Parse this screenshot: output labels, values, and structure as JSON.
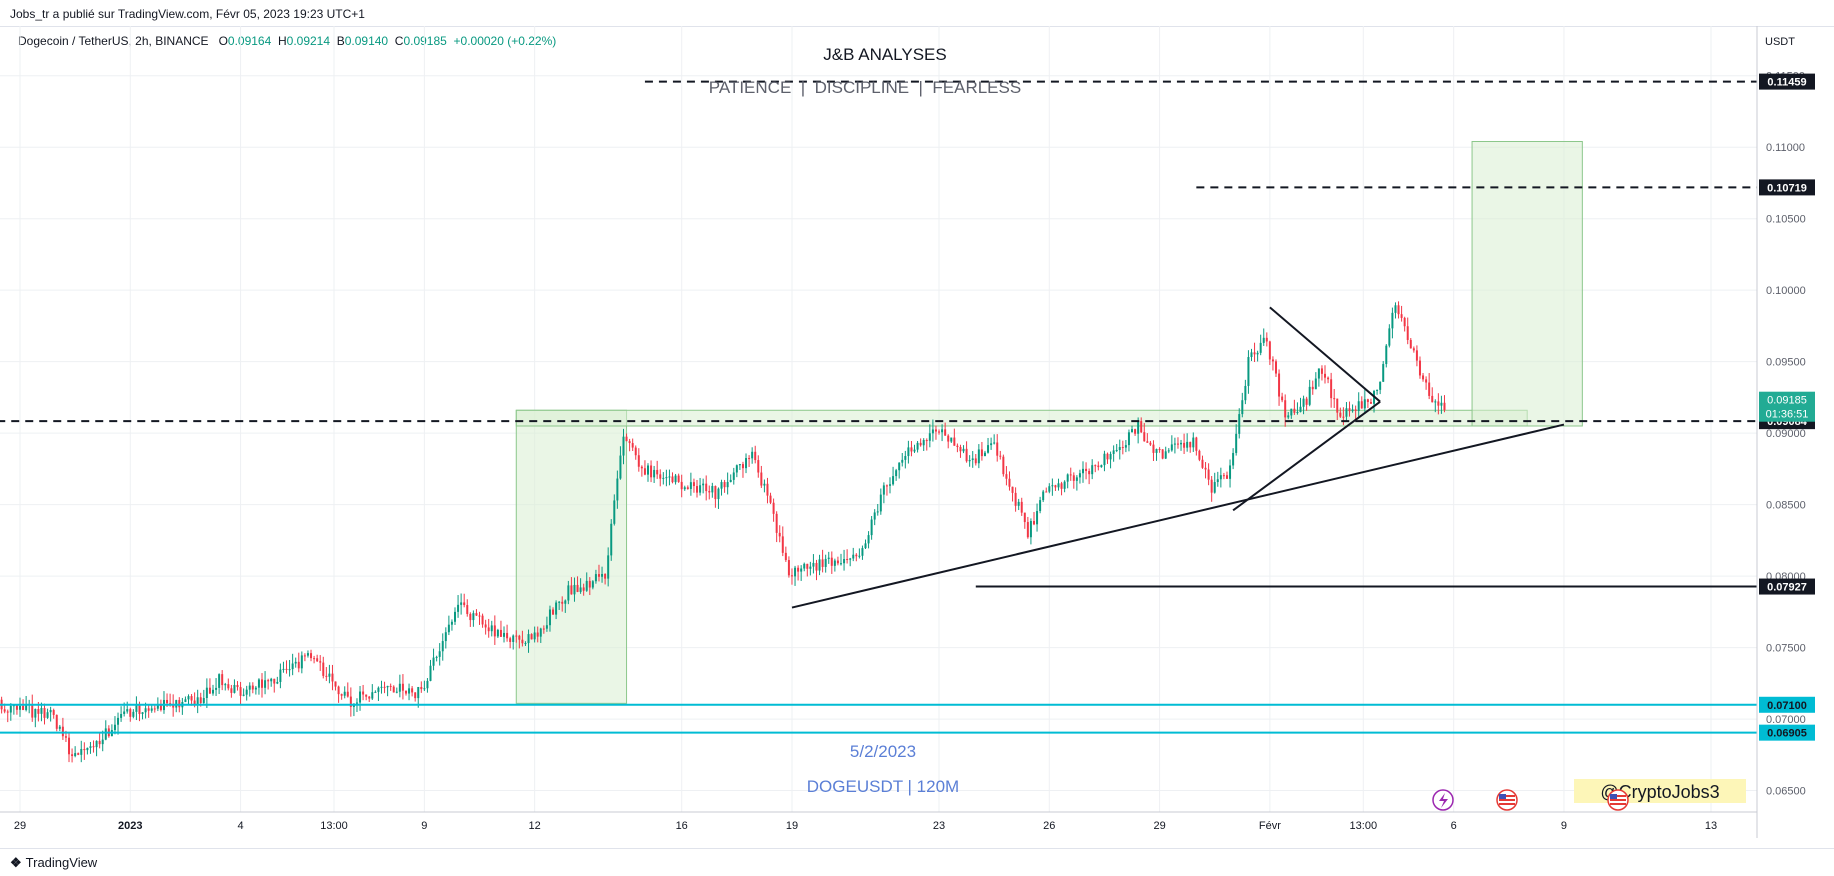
{
  "header": {
    "published_by": "Jobs_tr a publié sur TradingView.com, Févr 05, 2023 19:23 UTC+1"
  },
  "symbol": {
    "name": "Dogecoin / TetherUS, 2h, BINANCE",
    "open_label": "O",
    "open": "0.09164",
    "high_label": "H",
    "high": "0.09214",
    "low_label": "B",
    "low": "0.09140",
    "close_label": "C",
    "close": "0.09185",
    "change": "+0.00020 (+0.22%)"
  },
  "footer": {
    "brand": "TradingView"
  },
  "chart_data": {
    "type": "candlestick",
    "currency_label": "USDT",
    "ylim": [
      0.0635,
      0.1175
    ],
    "y_ticks": [
      "0.06500",
      "0.07000",
      "0.07500",
      "0.08000",
      "0.08500",
      "0.09000",
      "0.09500",
      "0.10000",
      "0.10500",
      "0.11000",
      "0.11500"
    ],
    "x_ticks": [
      "29",
      "2023",
      "4",
      "13:00",
      "9",
      "12",
      "16",
      "19",
      "23",
      "26",
      "29",
      "Févr",
      "13:00",
      "6",
      "9",
      "13"
    ],
    "x_tick_dates": [
      "2022-12-29",
      "2023-01-01",
      "2023-01-04",
      "2023-01-06 13:00",
      "2023-01-09",
      "2023-01-12",
      "2023-01-16",
      "2023-01-19",
      "2023-01-23",
      "2023-01-26",
      "2023-01-29",
      "2023-02-01",
      "2023-02-03 13:00",
      "2023-02-06",
      "2023-02-09",
      "2023-02-13"
    ],
    "price_path": [
      [
        "2022-12-28",
        0.0712
      ],
      [
        "2022-12-29",
        0.0708
      ],
      [
        "2022-12-30",
        0.0702
      ],
      [
        "2022-12-30 12:00",
        0.0675
      ],
      [
        "2022-12-31",
        0.068
      ],
      [
        "2023-01-01",
        0.0705
      ],
      [
        "2023-01-02",
        0.071
      ],
      [
        "2023-01-03",
        0.0715
      ],
      [
        "2023-01-03 12:00",
        0.0727
      ],
      [
        "2023-01-04",
        0.0718
      ],
      [
        "2023-01-05",
        0.0728
      ],
      [
        "2023-01-06",
        0.0745
      ],
      [
        "2023-01-07",
        0.0712
      ],
      [
        "2023-01-08",
        0.0722
      ],
      [
        "2023-01-09",
        0.0718
      ],
      [
        "2023-01-09 12:00",
        0.075
      ],
      [
        "2023-01-10",
        0.078
      ],
      [
        "2023-01-11",
        0.076
      ],
      [
        "2023-01-12",
        0.0755
      ],
      [
        "2023-01-13",
        0.079
      ],
      [
        "2023-01-14",
        0.08
      ],
      [
        "2023-01-14 12:00",
        0.09
      ],
      [
        "2023-01-15",
        0.0875
      ],
      [
        "2023-01-16",
        0.0865
      ],
      [
        "2023-01-17",
        0.0858
      ],
      [
        "2023-01-18",
        0.0885
      ],
      [
        "2023-01-18 12:00",
        0.0848
      ],
      [
        "2023-01-19",
        0.0802
      ],
      [
        "2023-01-20",
        0.081
      ],
      [
        "2023-01-21",
        0.0818
      ],
      [
        "2023-01-21 12:00",
        0.0855
      ],
      [
        "2023-01-22",
        0.088
      ],
      [
        "2023-01-23",
        0.0905
      ],
      [
        "2023-01-24",
        0.088
      ],
      [
        "2023-01-24 12:00",
        0.0895
      ],
      [
        "2023-01-25",
        0.0865
      ],
      [
        "2023-01-25 12:00",
        0.083
      ],
      [
        "2023-01-26",
        0.086
      ],
      [
        "2023-01-27",
        0.0872
      ],
      [
        "2023-01-28",
        0.0888
      ],
      [
        "2023-01-28 12:00",
        0.0905
      ],
      [
        "2023-01-29",
        0.0885
      ],
      [
        "2023-01-30",
        0.0895
      ],
      [
        "2023-01-30 12:00",
        0.086
      ],
      [
        "2023-01-31",
        0.0875
      ],
      [
        "2023-01-31 12:00",
        0.095
      ],
      [
        "2023-02-01",
        0.0965
      ],
      [
        "2023-02-01 12:00",
        0.091
      ],
      [
        "2023-02-02",
        0.092
      ],
      [
        "2023-02-02 12:00",
        0.0945
      ],
      [
        "2023-02-03",
        0.091
      ],
      [
        "2023-02-04",
        0.0928
      ],
      [
        "2023-02-04 12:00",
        0.099
      ],
      [
        "2023-02-05",
        0.0955
      ],
      [
        "2023-02-05 12:00",
        0.092
      ],
      [
        "2023-02-05 19:00",
        0.09185
      ]
    ],
    "title": "J&B ANALYSES",
    "subtitle": "PATIENCE  |  DISCIPLINE  |  FEARLESS",
    "date_caption": "5/2/2023",
    "pair_caption": "DOGEUSDT | 120M",
    "watermark_handle": "@CryptoJobs3",
    "dashed_levels": [
      {
        "price": 0.11459,
        "label": "0.11459",
        "from": "2023-01-15"
      },
      {
        "price": 0.10719,
        "label": "0.10719",
        "from": "2023-01-30"
      },
      {
        "price": 0.09084,
        "label": "0.09084",
        "from": "2022-12-28"
      }
    ],
    "solid_level": {
      "price": 0.07927,
      "label": "0.07927",
      "from": "2023-01-24"
    },
    "support_lines": [
      {
        "price": 0.071,
        "label": "0.07100"
      },
      {
        "price": 0.06905,
        "label": "0.06905"
      }
    ],
    "current_price": {
      "label": "0.09185",
      "countdown": "01:36:51",
      "price": 0.09185
    },
    "trend_lines": [
      {
        "from": [
          "2023-01-19",
          0.0778
        ],
        "to": [
          "2023-02-09",
          0.0906
        ]
      },
      {
        "from": [
          "2023-01-31",
          0.0846
        ],
        "to": [
          "2023-02-04",
          0.0922
        ]
      },
      {
        "from": [
          "2023-02-01",
          0.0988
        ],
        "to": [
          "2023-02-04",
          0.0922
        ]
      }
    ],
    "zones": [
      {
        "from": "2023-01-11 12:00",
        "to": "2023-01-14 12:00",
        "top": 0.0916,
        "bottom": 0.0711
      },
      {
        "from": "2023-01-11 12:00",
        "to": "2023-02-08",
        "top": 0.0916,
        "bottom": 0.0905
      },
      {
        "from": "2023-02-06 12:00",
        "to": "2023-02-09 12:00",
        "top": 0.1104,
        "bottom": 0.0905
      }
    ],
    "colors": {
      "up": "#089981",
      "down": "#f23645",
      "support": "#00bcd4",
      "zone_fill": "#d8efd2",
      "zone_stroke": "#8cc78b",
      "current_badge": "#22ab94",
      "caption": "#5b7fd6",
      "watermark_bg": "#fdf6b8"
    }
  }
}
